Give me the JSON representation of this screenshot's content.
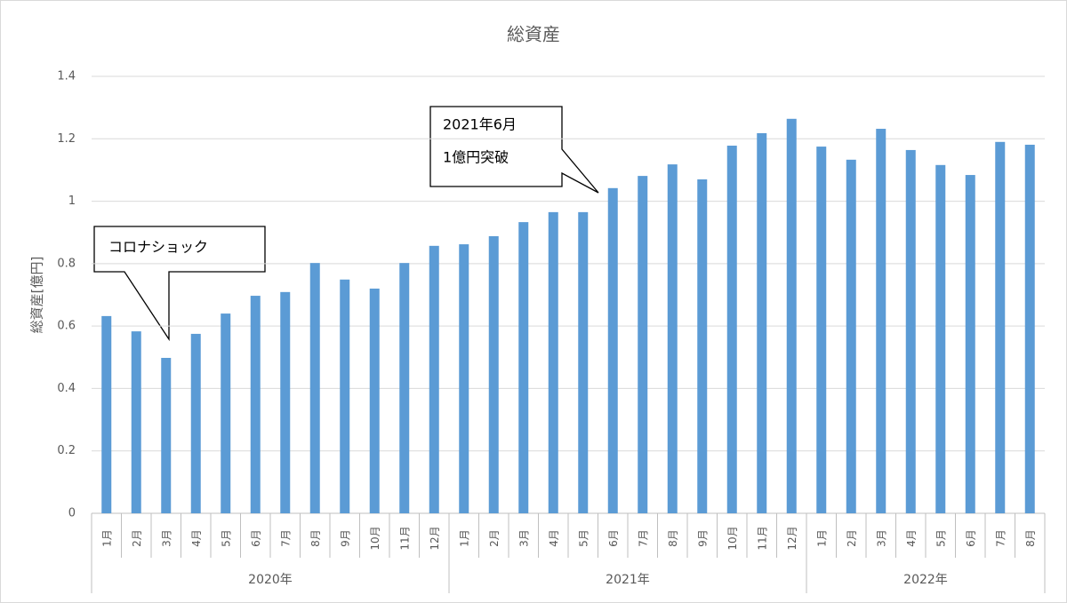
{
  "chart_data": {
    "type": "bar",
    "title": "総資産",
    "ylabel": "総資産[億円]",
    "color": "#5b9bd5",
    "groups": [
      {
        "name": "2020年",
        "categories": [
          "1月",
          "2月",
          "3月",
          "4月",
          "5月",
          "6月",
          "7月",
          "8月",
          "9月",
          "10月",
          "11月",
          "12月"
        ]
      },
      {
        "name": "2021年",
        "categories": [
          "1月",
          "2月",
          "3月",
          "4月",
          "5月",
          "6月",
          "7月",
          "8月",
          "9月",
          "10月",
          "11月",
          "12月"
        ]
      },
      {
        "name": "2022年",
        "categories": [
          "1月",
          "2月",
          "3月",
          "4月",
          "5月",
          "6月",
          "7月",
          "8月"
        ]
      }
    ],
    "values": [
      0.632,
      0.583,
      0.498,
      0.575,
      0.64,
      0.697,
      0.709,
      0.802,
      0.749,
      0.72,
      0.802,
      0.857,
      0.862,
      0.888,
      0.933,
      0.965,
      0.965,
      1.042,
      1.081,
      1.118,
      1.07,
      1.178,
      1.218,
      1.264,
      1.175,
      1.133,
      1.232,
      1.164,
      1.116,
      1.084,
      1.19,
      1.181
    ],
    "ylim": [
      0,
      1.4
    ],
    "yticks": [
      0,
      0.2,
      0.4,
      0.6,
      0.8,
      1,
      1.2,
      1.4
    ],
    "grid": true,
    "annotations": [
      {
        "lines": [
          "コロナショック"
        ]
      },
      {
        "lines": [
          "2021年6月",
          "1億円突破"
        ]
      }
    ]
  }
}
